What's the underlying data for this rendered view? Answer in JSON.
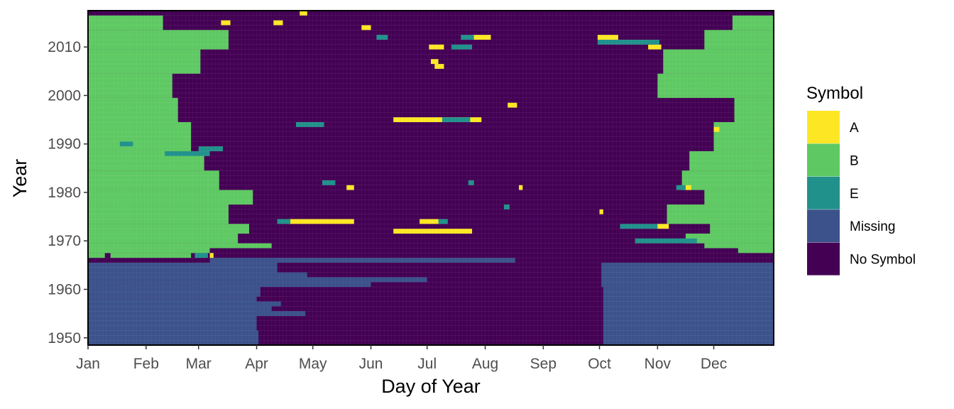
{
  "chart_data": {
    "type": "heatmap",
    "title": "",
    "xlabel": "Day of Year",
    "ylabel": "Year",
    "x_ticks": [
      "Jan",
      "Feb",
      "Mar",
      "Apr",
      "May",
      "Jun",
      "Jul",
      "Aug",
      "Sep",
      "Oct",
      "Nov",
      "Dec"
    ],
    "x_tick_days": [
      1,
      32,
      60,
      91,
      121,
      152,
      182,
      213,
      244,
      274,
      305,
      335
    ],
    "y_ticks": [
      1950,
      1960,
      1970,
      1980,
      1990,
      2000,
      2010
    ],
    "xlim": [
      1,
      366
    ],
    "ylim": [
      1949,
      2017
    ],
    "grid": false,
    "legend": {
      "title": "Symbol",
      "placement": "right",
      "entries": [
        {
          "label": "A",
          "color": "#fde725"
        },
        {
          "label": "B",
          "color": "#5ec962"
        },
        {
          "label": "E",
          "color": "#21918c"
        },
        {
          "label": "Missing",
          "color": "#3b528b"
        },
        {
          "label": "No Symbol",
          "color": "#440154"
        }
      ]
    },
    "default_category": "No Symbol",
    "segments": [
      {
        "category": "Missing",
        "years": [
          1949,
          1951
        ],
        "days": [
          1,
          91
        ]
      },
      {
        "category": "Missing",
        "years": [
          1949,
          1951
        ],
        "days": [
          276,
          366
        ]
      },
      {
        "category": "Missing",
        "years": [
          1952,
          1958
        ],
        "days": [
          1,
          90
        ]
      },
      {
        "category": "Missing",
        "years": [
          1952,
          1960
        ],
        "days": [
          276,
          366
        ]
      },
      {
        "category": "Missing",
        "years": [
          1955,
          1955
        ],
        "days": [
          91,
          116
        ]
      },
      {
        "category": "Missing",
        "years": [
          1956,
          1956
        ],
        "days": [
          91,
          98
        ]
      },
      {
        "category": "Missing",
        "years": [
          1957,
          1957
        ],
        "days": [
          91,
          103
        ]
      },
      {
        "category": "Missing",
        "years": [
          1959,
          1960
        ],
        "days": [
          1,
          92
        ]
      },
      {
        "category": "Missing",
        "years": [
          1961,
          1961
        ],
        "days": [
          1,
          151
        ]
      },
      {
        "category": "Missing",
        "years": [
          1961,
          1965
        ],
        "days": [
          275,
          366
        ]
      },
      {
        "category": "Missing",
        "years": [
          1962,
          1962
        ],
        "days": [
          1,
          181
        ]
      },
      {
        "category": "Missing",
        "years": [
          1963,
          1963
        ],
        "days": [
          1,
          117
        ]
      },
      {
        "category": "Missing",
        "years": [
          1964,
          1965
        ],
        "days": [
          1,
          101
        ]
      },
      {
        "category": "Missing",
        "years": [
          1966,
          1966
        ],
        "days": [
          66,
          228
        ]
      },
      {
        "category": "B",
        "years": [
          1967,
          1967
        ],
        "days": [
          1,
          9
        ]
      },
      {
        "category": "B",
        "years": [
          1967,
          1967
        ],
        "days": [
          13,
          55
        ]
      },
      {
        "category": "B",
        "years": [
          1968,
          1968
        ],
        "days": [
          1,
          65
        ]
      },
      {
        "category": "B",
        "years": [
          1968,
          1968
        ],
        "days": [
          348,
          366
        ]
      },
      {
        "category": "B",
        "years": [
          1969,
          1969
        ],
        "days": [
          1,
          98
        ]
      },
      {
        "category": "B",
        "years": [
          1969,
          1969
        ],
        "days": [
          330,
          366
        ]
      },
      {
        "category": "B",
        "years": [
          1970,
          1971
        ],
        "days": [
          1,
          80
        ]
      },
      {
        "category": "B",
        "years": [
          1970,
          1971
        ],
        "days": [
          320,
          366
        ]
      },
      {
        "category": "B",
        "years": [
          1972,
          1973
        ],
        "days": [
          1,
          86
        ]
      },
      {
        "category": "B",
        "years": [
          1972,
          1973
        ],
        "days": [
          333,
          366
        ]
      },
      {
        "category": "B",
        "years": [
          1974,
          1977
        ],
        "days": [
          1,
          75
        ]
      },
      {
        "category": "B",
        "years": [
          1974,
          1977
        ],
        "days": [
          310,
          366
        ]
      },
      {
        "category": "B",
        "years": [
          1978,
          1980
        ],
        "days": [
          1,
          88
        ]
      },
      {
        "category": "B",
        "years": [
          1978,
          1980
        ],
        "days": [
          330,
          366
        ]
      },
      {
        "category": "B",
        "years": [
          1981,
          1984
        ],
        "days": [
          1,
          70
        ]
      },
      {
        "category": "B",
        "years": [
          1981,
          1984
        ],
        "days": [
          318,
          366
        ]
      },
      {
        "category": "B",
        "years": [
          1985,
          1988
        ],
        "days": [
          1,
          62
        ]
      },
      {
        "category": "B",
        "years": [
          1985,
          1988
        ],
        "days": [
          322,
          366
        ]
      },
      {
        "category": "B",
        "years": [
          1989,
          1994
        ],
        "days": [
          1,
          55
        ]
      },
      {
        "category": "B",
        "years": [
          1989,
          1994
        ],
        "days": [
          335,
          366
        ]
      },
      {
        "category": "B",
        "years": [
          1995,
          1999
        ],
        "days": [
          1,
          48
        ]
      },
      {
        "category": "B",
        "years": [
          1995,
          1999
        ],
        "days": [
          346,
          366
        ]
      },
      {
        "category": "B",
        "years": [
          2000,
          2004
        ],
        "days": [
          1,
          45
        ]
      },
      {
        "category": "B",
        "years": [
          2000,
          2004
        ],
        "days": [
          305,
          366
        ]
      },
      {
        "category": "B",
        "years": [
          2005,
          2009
        ],
        "days": [
          1,
          60
        ]
      },
      {
        "category": "B",
        "years": [
          2005,
          2009
        ],
        "days": [
          308,
          366
        ]
      },
      {
        "category": "B",
        "years": [
          2010,
          2013
        ],
        "days": [
          1,
          75
        ]
      },
      {
        "category": "B",
        "years": [
          2010,
          2013
        ],
        "days": [
          330,
          366
        ]
      },
      {
        "category": "B",
        "years": [
          2014,
          2016
        ],
        "days": [
          1,
          40
        ]
      },
      {
        "category": "B",
        "years": [
          2014,
          2016
        ],
        "days": [
          345,
          366
        ]
      },
      {
        "category": "A",
        "years": [
          1967,
          1967
        ],
        "days": [
          66,
          67
        ]
      },
      {
        "category": "E",
        "years": [
          1967,
          1967
        ],
        "days": [
          58,
          64
        ]
      },
      {
        "category": "E",
        "years": [
          1970,
          1970
        ],
        "days": [
          293,
          325
        ]
      },
      {
        "category": "A",
        "years": [
          1972,
          1972
        ],
        "days": [
          164,
          205
        ]
      },
      {
        "category": "E",
        "years": [
          1973,
          1973
        ],
        "days": [
          285,
          305
        ]
      },
      {
        "category": "A",
        "years": [
          1973,
          1973
        ],
        "days": [
          305,
          310
        ]
      },
      {
        "category": "A",
        "years": [
          1974,
          1974
        ],
        "days": [
          108,
          142
        ]
      },
      {
        "category": "E",
        "years": [
          1974,
          1974
        ],
        "days": [
          102,
          108
        ]
      },
      {
        "category": "A",
        "years": [
          1974,
          1974
        ],
        "days": [
          178,
          188
        ]
      },
      {
        "category": "E",
        "years": [
          1974,
          1974
        ],
        "days": [
          188,
          192
        ]
      },
      {
        "category": "A",
        "years": [
          1976,
          1976
        ],
        "days": [
          274,
          275
        ]
      },
      {
        "category": "E",
        "years": [
          1977,
          1977
        ],
        "days": [
          223,
          225
        ]
      },
      {
        "category": "A",
        "years": [
          1981,
          1981
        ],
        "days": [
          139,
          142
        ]
      },
      {
        "category": "A",
        "years": [
          1981,
          1981
        ],
        "days": [
          231,
          232
        ]
      },
      {
        "category": "E",
        "years": [
          1981,
          1981
        ],
        "days": [
          315,
          320
        ]
      },
      {
        "category": "A",
        "years": [
          1981,
          1981
        ],
        "days": [
          320,
          322
        ]
      },
      {
        "category": "E",
        "years": [
          1982,
          1982
        ],
        "days": [
          126,
          132
        ]
      },
      {
        "category": "E",
        "years": [
          1982,
          1982
        ],
        "days": [
          204,
          206
        ]
      },
      {
        "category": "E",
        "years": [
          1988,
          1988
        ],
        "days": [
          42,
          65
        ]
      },
      {
        "category": "E",
        "years": [
          1989,
          1989
        ],
        "days": [
          60,
          72
        ]
      },
      {
        "category": "E",
        "years": [
          1990,
          1990
        ],
        "days": [
          18,
          24
        ]
      },
      {
        "category": "E",
        "years": [
          1994,
          1994
        ],
        "days": [
          112,
          126
        ]
      },
      {
        "category": "A",
        "years": [
          1995,
          1995
        ],
        "days": [
          164,
          210
        ]
      },
      {
        "category": "E",
        "years": [
          1995,
          1995
        ],
        "days": [
          190,
          204
        ]
      },
      {
        "category": "A",
        "years": [
          1993,
          1993
        ],
        "days": [
          335,
          337
        ]
      },
      {
        "category": "A",
        "years": [
          1998,
          1998
        ],
        "days": [
          225,
          229
        ]
      },
      {
        "category": "A",
        "years": [
          2006,
          2006
        ],
        "days": [
          186,
          190
        ]
      },
      {
        "category": "A",
        "years": [
          2007,
          2007
        ],
        "days": [
          184,
          187
        ]
      },
      {
        "category": "A",
        "years": [
          2010,
          2010
        ],
        "days": [
          183,
          190
        ]
      },
      {
        "category": "E",
        "years": [
          2010,
          2010
        ],
        "days": [
          195,
          205
        ]
      },
      {
        "category": "A",
        "years": [
          2010,
          2010
        ],
        "days": [
          300,
          306
        ]
      },
      {
        "category": "E",
        "years": [
          2011,
          2011
        ],
        "days": [
          273,
          305
        ]
      },
      {
        "category": "A",
        "years": [
          2012,
          2012
        ],
        "days": [
          206,
          215
        ]
      },
      {
        "category": "E",
        "years": [
          2012,
          2012
        ],
        "days": [
          200,
          206
        ]
      },
      {
        "category": "A",
        "years": [
          2012,
          2012
        ],
        "days": [
          273,
          283
        ]
      },
      {
        "category": "E",
        "years": [
          2012,
          2012
        ],
        "days": [
          155,
          160
        ]
      },
      {
        "category": "A",
        "years": [
          2014,
          2014
        ],
        "days": [
          147,
          151
        ]
      },
      {
        "category": "A",
        "years": [
          2015,
          2015
        ],
        "days": [
          72,
          76
        ]
      },
      {
        "category": "A",
        "years": [
          2015,
          2015
        ],
        "days": [
          100,
          104
        ]
      },
      {
        "category": "A",
        "years": [
          2017,
          2017
        ],
        "days": [
          114,
          117
        ]
      }
    ]
  }
}
